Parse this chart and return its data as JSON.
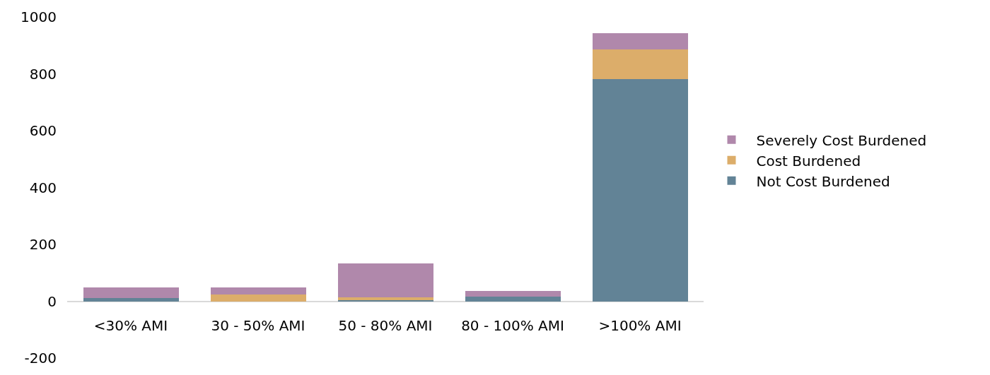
{
  "chart_data": {
    "type": "bar",
    "stacked": true,
    "categories": [
      "<30% AMI",
      "30 - 50% AMI",
      "50 - 80% AMI",
      "80 - 100% AMI",
      ">100% AMI"
    ],
    "series": [
      {
        "name": "Not Cost Burdened",
        "color": "#628396",
        "values": [
          10,
          0,
          3,
          16,
          782
        ]
      },
      {
        "name": "Cost Burdened",
        "color": "#dcad6a",
        "values": [
          0,
          24,
          10,
          0,
          104
        ]
      },
      {
        "name": "Severely Cost Burdened",
        "color": "#b088ab",
        "values": [
          38,
          24,
          119,
          20,
          56
        ]
      }
    ],
    "ylim": [
      -200,
      1000
    ],
    "yticks": [
      -200,
      0,
      200,
      400,
      600,
      800,
      1000
    ],
    "legend": "right"
  }
}
